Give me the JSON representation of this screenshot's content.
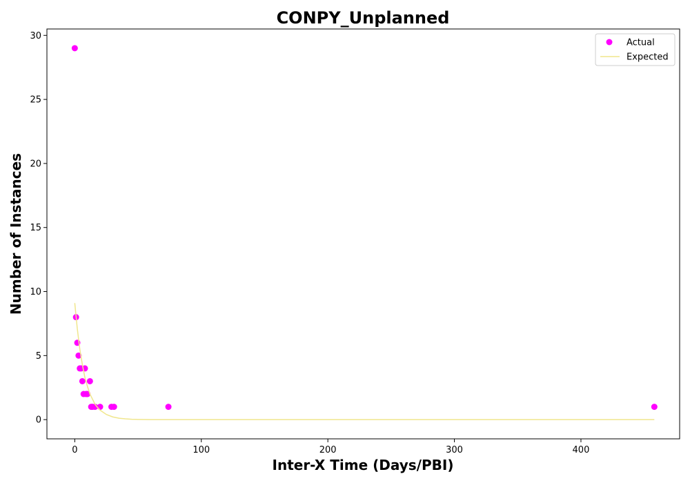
{
  "chart_data": {
    "type": "scatter",
    "title": "CONPY_Unplanned",
    "xlabel": "Inter-X Time (Days/PBI)",
    "ylabel": "Number of Instances",
    "xlim": [
      -22,
      478
    ],
    "ylim": [
      -1.5,
      30.5
    ],
    "xticks": [
      0,
      100,
      200,
      300,
      400
    ],
    "yticks": [
      0,
      5,
      10,
      15,
      20,
      25,
      30
    ],
    "legend_position": "top-right",
    "series": [
      {
        "name": "Actual",
        "kind": "scatter",
        "color": "#ff00ff",
        "points": [
          [
            0,
            29
          ],
          [
            1,
            8
          ],
          [
            2,
            6
          ],
          [
            3,
            5
          ],
          [
            4,
            4
          ],
          [
            5,
            4
          ],
          [
            6,
            3
          ],
          [
            7,
            2
          ],
          [
            8,
            4
          ],
          [
            9,
            2
          ],
          [
            10,
            2
          ],
          [
            12,
            3
          ],
          [
            13,
            1
          ],
          [
            14,
            1
          ],
          [
            16,
            1
          ],
          [
            20,
            1
          ],
          [
            29,
            1
          ],
          [
            31,
            1
          ],
          [
            74,
            1
          ],
          [
            458,
            1
          ]
        ]
      },
      {
        "name": "Expected",
        "kind": "line",
        "color": "#f0e68c",
        "x": [
          0,
          2,
          4,
          6,
          8,
          10,
          12,
          14,
          16,
          18,
          20,
          25,
          30,
          35,
          40,
          45,
          50,
          60,
          80,
          100,
          150,
          200,
          250,
          300,
          350,
          400,
          458
        ],
        "y": [
          9.1,
          7.1,
          5.5,
          4.3,
          3.3,
          2.6,
          2.0,
          1.6,
          1.2,
          0.95,
          0.74,
          0.4,
          0.21,
          0.11,
          0.06,
          0.03,
          0.016,
          0.0,
          0.0,
          0.0,
          0.0,
          0.0,
          0.0,
          0.0,
          0.0,
          0.0,
          0.0
        ]
      }
    ]
  }
}
